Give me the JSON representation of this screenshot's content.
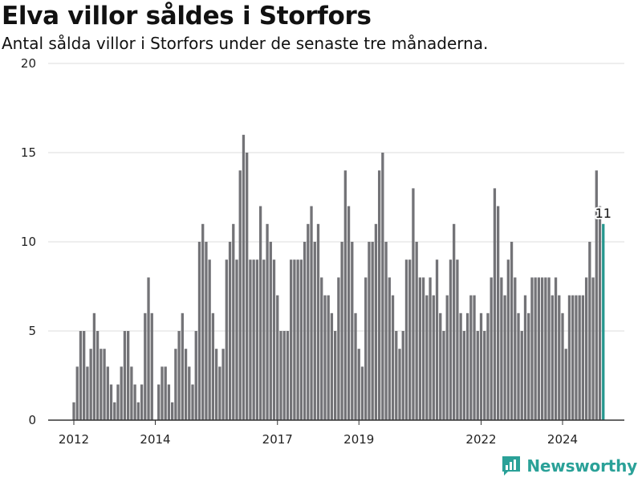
{
  "header": {
    "title": "Elva villor såldes i Storfors",
    "subtitle": "Antal sålda villor i Storfors under de senaste tre månaderna."
  },
  "brand": {
    "name": "Newsworthy",
    "color": "#2aa198"
  },
  "chart_data": {
    "type": "bar",
    "x_start": "2012-01",
    "x_step": "month",
    "values": [
      1,
      3,
      5,
      5,
      3,
      4,
      6,
      5,
      4,
      4,
      3,
      2,
      1,
      2,
      3,
      5,
      5,
      3,
      2,
      1,
      2,
      6,
      8,
      6,
      0,
      2,
      3,
      3,
      2,
      1,
      4,
      5,
      6,
      4,
      3,
      2,
      5,
      10,
      11,
      10,
      9,
      6,
      4,
      3,
      4,
      9,
      10,
      11,
      9,
      14,
      16,
      15,
      9,
      9,
      9,
      12,
      9,
      11,
      10,
      9,
      7,
      5,
      5,
      5,
      9,
      9,
      9,
      9,
      10,
      11,
      12,
      10,
      11,
      8,
      7,
      7,
      6,
      5,
      8,
      10,
      14,
      12,
      10,
      6,
      4,
      3,
      8,
      10,
      10,
      11,
      14,
      15,
      10,
      8,
      7,
      5,
      4,
      5,
      9,
      9,
      13,
      10,
      8,
      8,
      7,
      8,
      7,
      9,
      6,
      5,
      7,
      9,
      11,
      9,
      6,
      5,
      6,
      7,
      7,
      5,
      6,
      5,
      6,
      8,
      13,
      12,
      8,
      7,
      9,
      10,
      8,
      6,
      5,
      7,
      6,
      8,
      8,
      8,
      8,
      8,
      8,
      7,
      8,
      7,
      6,
      4,
      7,
      7,
      7,
      7,
      7,
      8,
      10,
      8,
      14,
      12,
      11
    ],
    "highlight_color": "#26978e",
    "bar_color": "#737377",
    "ylim": [
      0,
      20
    ],
    "yticks": [
      0,
      5,
      10,
      15,
      20
    ],
    "xticks": [
      "2012",
      "2014",
      "2017",
      "2019",
      "2022",
      "2024"
    ],
    "annotation": "11",
    "grid": true
  }
}
